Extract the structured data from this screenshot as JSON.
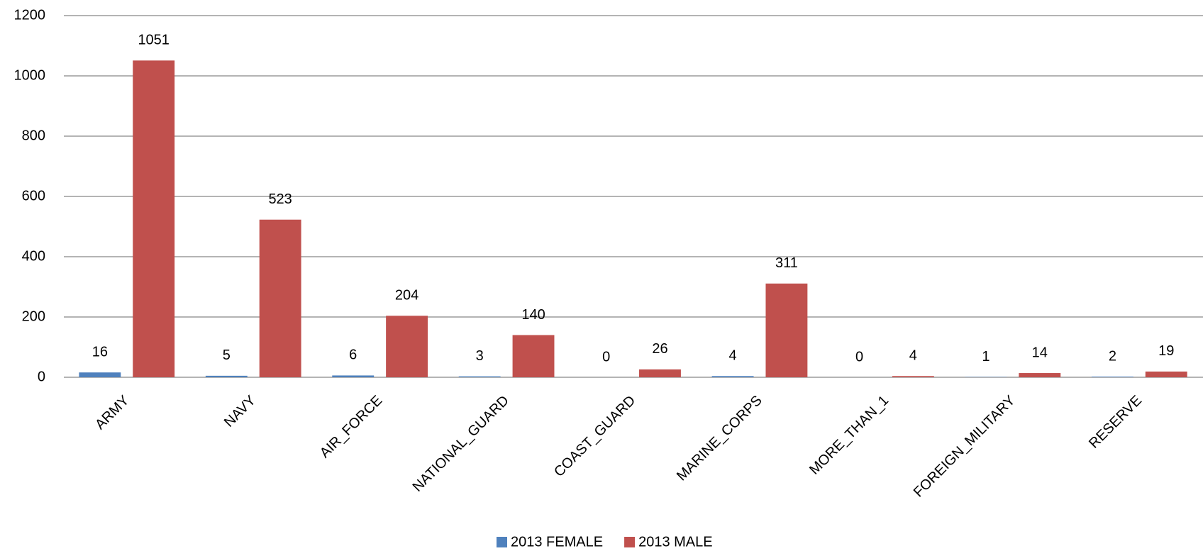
{
  "chart_data": {
    "type": "bar",
    "categories": [
      "ARMY",
      "NAVY",
      "AIR_FORCE",
      "NATIONAL_GUARD",
      "COAST_GUARD",
      "MARINE_CORPS",
      "MORE_THAN_1",
      "FOREIGN_MILITARY",
      "RESERVE"
    ],
    "series": [
      {
        "name": "2013 FEMALE",
        "color": "#4f81bd",
        "values": [
          16,
          5,
          6,
          3,
          0,
          4,
          0,
          1,
          2
        ]
      },
      {
        "name": "2013 MALE",
        "color": "#c0504d",
        "values": [
          1051,
          523,
          204,
          140,
          26,
          311,
          4,
          14,
          19
        ]
      }
    ],
    "ylim": [
      0,
      1200
    ],
    "yticks": [
      0,
      200,
      400,
      600,
      800,
      1000,
      1200
    ],
    "grid": true,
    "legend": "bottom"
  }
}
